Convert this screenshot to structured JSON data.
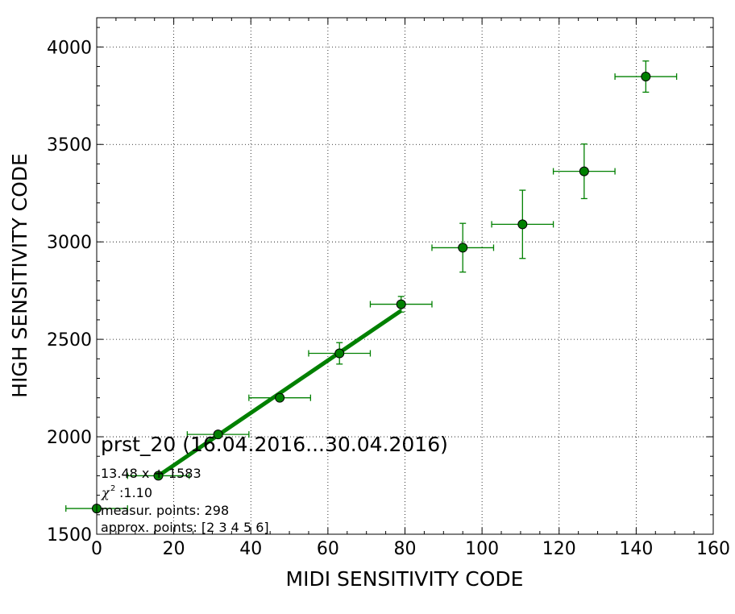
{
  "chart_data": {
    "type": "scatter",
    "title": "prst_20 (16.04.2016...30.04.2016)",
    "xlabel": "MIDI SENSITIVITY CODE",
    "ylabel": "HIGH SENSITIVITY CODE",
    "xlim": [
      0,
      160
    ],
    "ylim": [
      1500,
      4150
    ],
    "xticks": [
      "0",
      "20",
      "40",
      "60",
      "80",
      "100",
      "120",
      "140",
      "160"
    ],
    "yticks": [
      "1500",
      "2000",
      "2500",
      "3000",
      "3500",
      "4000"
    ],
    "grid": true,
    "colors": {
      "series": "#008000",
      "line": "#008000"
    },
    "points": [
      {
        "x": 0,
        "y": 1632,
        "xerr": 8,
        "yerr": 0
      },
      {
        "x": 16,
        "y": 1800,
        "xerr": 8,
        "yerr": 0
      },
      {
        "x": 31.5,
        "y": 2012,
        "xerr": 8,
        "yerr": 0
      },
      {
        "x": 47.5,
        "y": 2200,
        "xerr": 8,
        "yerr": 15
      },
      {
        "x": 63,
        "y": 2428,
        "xerr": 8,
        "yerr": 55
      },
      {
        "x": 79,
        "y": 2680,
        "xerr": 8,
        "yerr": 40
      },
      {
        "x": 95,
        "y": 2970,
        "xerr": 8,
        "yerr": 125
      },
      {
        "x": 110.5,
        "y": 3090,
        "xerr": 8,
        "yerr": 175
      },
      {
        "x": 126.5,
        "y": 3362,
        "xerr": 8,
        "yerr": 140
      },
      {
        "x": 142.5,
        "y": 3848,
        "xerr": 8,
        "yerr": 80
      }
    ],
    "fit_line": {
      "x": [
        16,
        79
      ],
      "y": [
        1800,
        2647
      ]
    },
    "annotations": {
      "formula": "13.48 x + 1583",
      "chi2_value": ":1.10",
      "measur_points": "measur. points: 298",
      "approx_points": "approx. points: [2 3 4 5 6]"
    }
  }
}
